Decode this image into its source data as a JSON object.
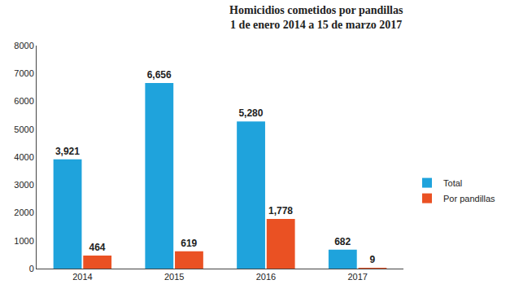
{
  "chart_data": {
    "type": "bar",
    "title": "Homicidios cometidos por pandillas",
    "subtitle": "1 de enero 2014 a 15 de marzo 2017",
    "categories": [
      "2014",
      "2015",
      "2016",
      "2017"
    ],
    "series": [
      {
        "name": "Total",
        "color": "#1fa3dc",
        "values": [
          3921,
          6656,
          5280,
          682
        ],
        "value_labels": [
          "3,921",
          "6,656",
          "5,280",
          "682"
        ]
      },
      {
        "name": "Por pandillas",
        "color": "#ea5123",
        "values": [
          464,
          619,
          1778,
          9
        ],
        "value_labels": [
          "464",
          "619",
          "1,778",
          "9"
        ]
      }
    ],
    "ylim": [
      0,
      8000
    ],
    "yticks": [
      0,
      1000,
      2000,
      3000,
      4000,
      5000,
      6000,
      7000,
      8000
    ],
    "grid": false,
    "legend": "right",
    "data_labels": true
  }
}
